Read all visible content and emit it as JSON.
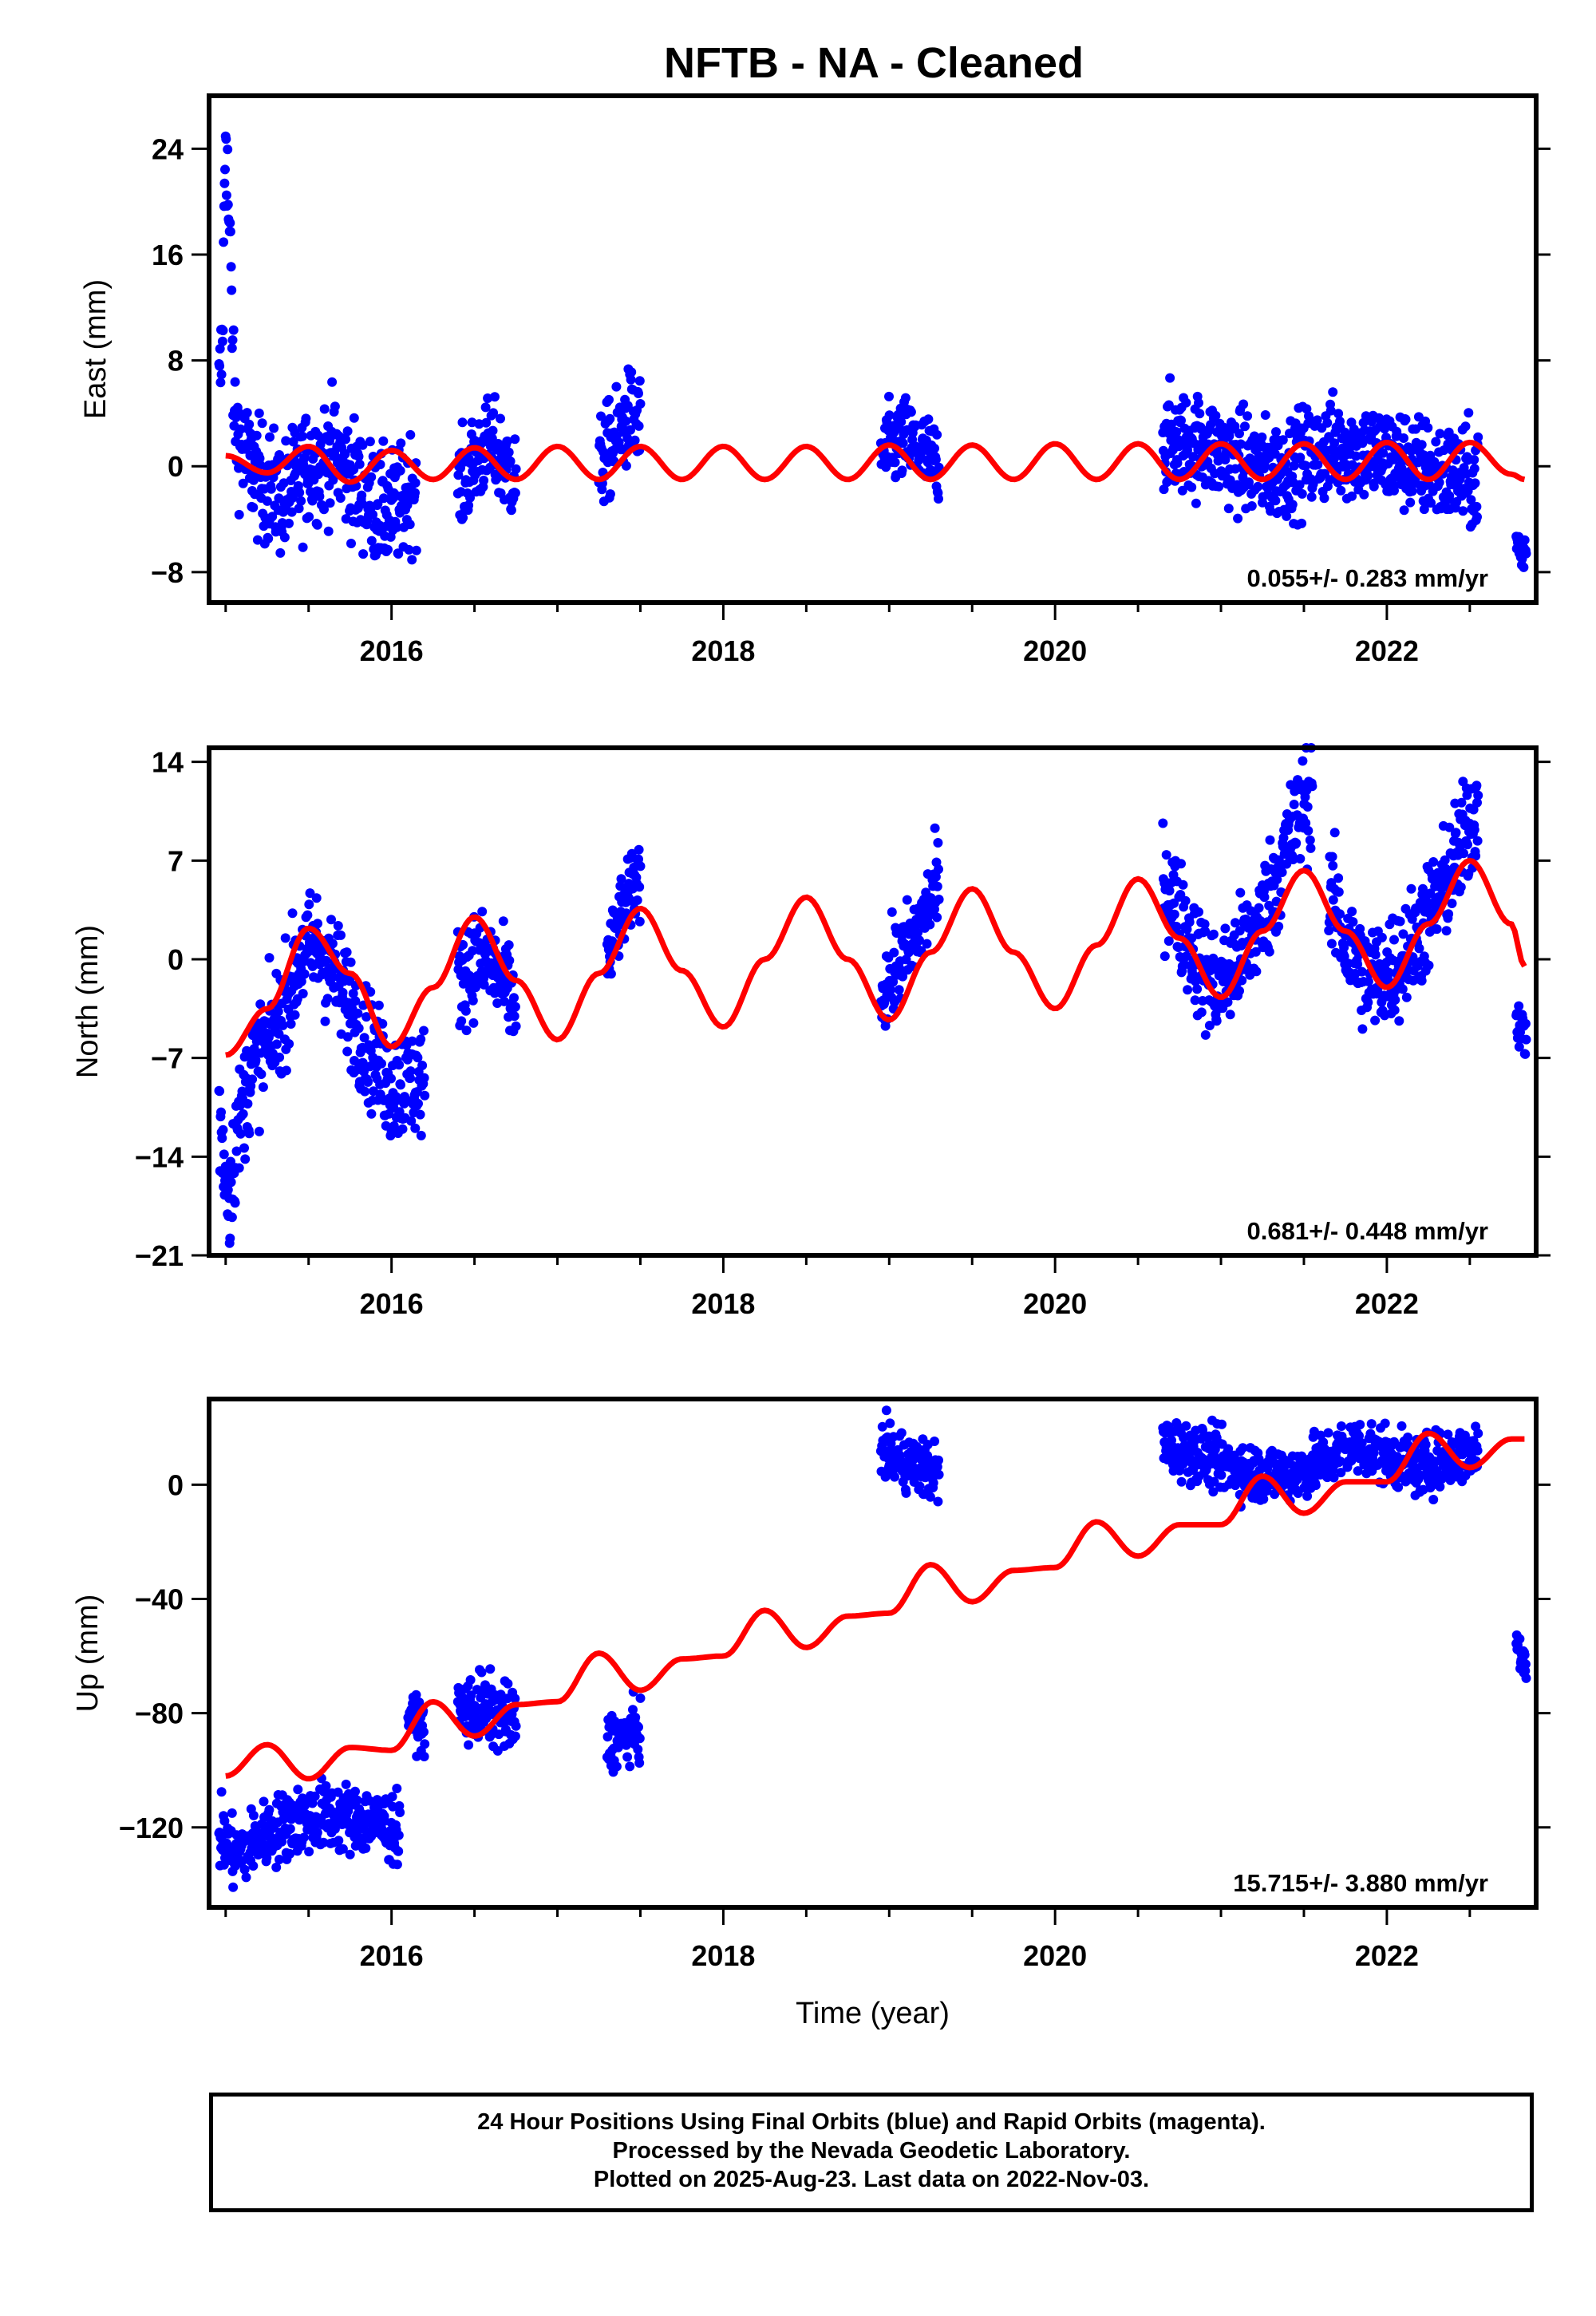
{
  "title": "NFTB  - NA - Cleaned",
  "footer": {
    "line1": "24 Hour Positions Using Final Orbits (blue) and Rapid Orbits (magenta).",
    "line2": "Processed by the Nevada Geodetic Laboratory.",
    "line3": "Plotted on 2025-Aug-23. Last data on 2022-Nov-03."
  },
  "colors": {
    "data": "#0000ff",
    "model": "#ff0000",
    "frame": "#000000"
  },
  "chart_data": [
    {
      "type": "scatter",
      "name": "east",
      "ylabel": "East (mm)",
      "xlabel": "",
      "xlim": [
        2014.9,
        2022.9
      ],
      "ylim": [
        -10.3,
        28
      ],
      "xticks": [
        2016,
        2018,
        2020,
        2022
      ],
      "yticks": [
        24,
        16,
        8,
        0,
        -8
      ],
      "ytick_labels": [
        "24",
        "16",
        "8",
        "0",
        "−8"
      ],
      "rate_label": "0.055+/- 0.283 mm/yr",
      "data_segments": [
        {
          "start": 2014.96,
          "end": 2016.15,
          "pts": [
            [
              2014.96,
              5.5
            ],
            [
              2014.98,
              9.0
            ],
            [
              2015.0,
              26.5
            ],
            [
              2015.01,
              22.0
            ],
            [
              2015.02,
              18.0
            ],
            [
              2015.03,
              15.5
            ],
            [
              2015.05,
              4.0
            ],
            [
              2015.1,
              1.0
            ],
            [
              2015.2,
              -1.0
            ],
            [
              2015.35,
              -2.5
            ],
            [
              2015.5,
              0.0
            ],
            [
              2015.65,
              1.0
            ],
            [
              2015.8,
              -1.5
            ],
            [
              2015.95,
              -3.5
            ],
            [
              2016.05,
              -3.0
            ],
            [
              2016.15,
              -1.0
            ]
          ],
          "spread": 2.2
        },
        {
          "start": 2016.4,
          "end": 2016.75,
          "pts": [
            [
              2016.4,
              -2.0
            ],
            [
              2016.5,
              0.5
            ],
            [
              2016.6,
              1.5
            ],
            [
              2016.75,
              -1.0
            ]
          ],
          "spread": 1.8
        },
        {
          "start": 2017.25,
          "end": 2017.5,
          "pts": [
            [
              2017.25,
              0.0
            ],
            [
              2017.35,
              2.0
            ],
            [
              2017.45,
              4.0
            ],
            [
              2017.5,
              3.0
            ]
          ],
          "spread": 1.8
        },
        {
          "start": 2018.95,
          "end": 2019.3,
          "pts": [
            [
              2018.95,
              1.0
            ],
            [
              2019.1,
              2.0
            ],
            [
              2019.2,
              1.0
            ],
            [
              2019.3,
              0.0
            ]
          ],
          "spread": 1.6
        },
        {
          "start": 2020.65,
          "end": 2022.55,
          "pts": [
            [
              2020.65,
              2.0
            ],
            [
              2020.9,
              1.5
            ],
            [
              2021.1,
              0.5
            ],
            [
              2021.3,
              -0.5
            ],
            [
              2021.5,
              0.5
            ],
            [
              2021.7,
              1.5
            ],
            [
              2021.9,
              1.0
            ],
            [
              2022.1,
              0.5
            ],
            [
              2022.3,
              -0.5
            ],
            [
              2022.55,
              -1.0
            ]
          ],
          "spread": 1.9
        },
        {
          "start": 2022.78,
          "end": 2022.84,
          "pts": [
            [
              2022.78,
              -5.5
            ],
            [
              2022.81,
              -7.0
            ],
            [
              2022.84,
              -6.0
            ]
          ],
          "spread": 1.0
        }
      ],
      "model": {
        "points": [
          [
            2015.0,
            0.8
          ],
          [
            2015.25,
            -0.5
          ],
          [
            2015.5,
            1.5
          ],
          [
            2015.75,
            -1.2
          ],
          [
            2016.0,
            1.2
          ],
          [
            2016.25,
            -1.0
          ],
          [
            2016.5,
            1.4
          ],
          [
            2016.75,
            -1.0
          ],
          [
            2017.0,
            1.5
          ],
          [
            2017.25,
            -1.0
          ],
          [
            2017.5,
            1.5
          ],
          [
            2017.75,
            -1.0
          ],
          [
            2018.0,
            1.5
          ],
          [
            2018.25,
            -1.0
          ],
          [
            2018.5,
            1.5
          ],
          [
            2018.75,
            -1.0
          ],
          [
            2019.0,
            1.6
          ],
          [
            2019.25,
            -1.0
          ],
          [
            2019.5,
            1.6
          ],
          [
            2019.75,
            -1.0
          ],
          [
            2020.0,
            1.7
          ],
          [
            2020.25,
            -1.0
          ],
          [
            2020.5,
            1.7
          ],
          [
            2020.75,
            -1.0
          ],
          [
            2021.0,
            1.7
          ],
          [
            2021.25,
            -1.0
          ],
          [
            2021.5,
            1.7
          ],
          [
            2021.75,
            -1.0
          ],
          [
            2022.0,
            1.8
          ],
          [
            2022.25,
            -1.0
          ],
          [
            2022.5,
            1.8
          ],
          [
            2022.75,
            -0.6
          ],
          [
            2022.83,
            -1.0
          ]
        ]
      }
    },
    {
      "type": "scatter",
      "name": "north",
      "ylabel": "North (mm)",
      "xlabel": "",
      "xlim": [
        2014.9,
        2022.9
      ],
      "ylim": [
        -21,
        15
      ],
      "xticks": [
        2016,
        2018,
        2020,
        2022
      ],
      "yticks": [
        14,
        7,
        0,
        -7,
        -14,
        -21
      ],
      "ytick_labels": [
        "14",
        "7",
        "0",
        "−7",
        "−14",
        "−21"
      ],
      "rate_label": "0.681+/- 0.448 mm/yr",
      "data_segments": [
        {
          "start": 2014.96,
          "end": 2016.2,
          "pts": [
            [
              2014.96,
              -11.0
            ],
            [
              2015.02,
              -17.0
            ],
            [
              2015.06,
              -13.0
            ],
            [
              2015.15,
              -8.0
            ],
            [
              2015.3,
              -5.0
            ],
            [
              2015.45,
              0.0
            ],
            [
              2015.55,
              1.0
            ],
            [
              2015.7,
              -2.0
            ],
            [
              2015.85,
              -6.0
            ],
            [
              2016.0,
              -9.0
            ],
            [
              2016.2,
              -8.5
            ]
          ],
          "spread": 2.0
        },
        {
          "start": 2016.4,
          "end": 2016.75,
          "pts": [
            [
              2016.4,
              -1.5
            ],
            [
              2016.5,
              0.0
            ],
            [
              2016.6,
              -0.5
            ],
            [
              2016.75,
              -3.0
            ]
          ],
          "spread": 1.8
        },
        {
          "start": 2017.3,
          "end": 2017.5,
          "pts": [
            [
              2017.3,
              -0.5
            ],
            [
              2017.38,
              3.0
            ],
            [
              2017.45,
              5.0
            ],
            [
              2017.5,
              6.0
            ]
          ],
          "spread": 1.3
        },
        {
          "start": 2018.95,
          "end": 2019.3,
          "pts": [
            [
              2018.95,
              -2.5
            ],
            [
              2019.05,
              -0.5
            ],
            [
              2019.15,
              1.5
            ],
            [
              2019.25,
              4.0
            ],
            [
              2019.3,
              5.5
            ]
          ],
          "spread": 1.6
        },
        {
          "start": 2020.65,
          "end": 2021.55,
          "pts": [
            [
              2020.65,
              6.0
            ],
            [
              2020.75,
              3.0
            ],
            [
              2020.9,
              -1.0
            ],
            [
              2021.0,
              -2.0
            ],
            [
              2021.1,
              0.0
            ],
            [
              2021.25,
              3.0
            ],
            [
              2021.4,
              8.0
            ],
            [
              2021.5,
              11.0
            ],
            [
              2021.55,
              12.0
            ]
          ],
          "spread": 2.0
        },
        {
          "start": 2021.65,
          "end": 2022.55,
          "pts": [
            [
              2021.65,
              5.0
            ],
            [
              2021.75,
              1.0
            ],
            [
              2021.9,
              -1.5
            ],
            [
              2022.0,
              -1.0
            ],
            [
              2022.15,
              1.0
            ],
            [
              2022.3,
              4.0
            ],
            [
              2022.45,
              8.0
            ],
            [
              2022.55,
              11.0
            ]
          ],
          "spread": 2.0
        },
        {
          "start": 2022.78,
          "end": 2022.84,
          "pts": [
            [
              2022.78,
              -3.5
            ],
            [
              2022.81,
              -5.0
            ],
            [
              2022.84,
              -5.5
            ]
          ],
          "spread": 1.0
        }
      ],
      "model": {
        "points": [
          [
            2015.0,
            -6.8
          ],
          [
            2015.25,
            -3.5
          ],
          [
            2015.5,
            2.2
          ],
          [
            2015.75,
            -1.0
          ],
          [
            2016.0,
            -6.2
          ],
          [
            2016.25,
            -2.0
          ],
          [
            2016.5,
            3.0
          ],
          [
            2016.75,
            -1.5
          ],
          [
            2017.0,
            -5.7
          ],
          [
            2017.25,
            -1.0
          ],
          [
            2017.5,
            3.6
          ],
          [
            2017.75,
            -0.8
          ],
          [
            2018.0,
            -4.8
          ],
          [
            2018.25,
            0.0
          ],
          [
            2018.5,
            4.4
          ],
          [
            2018.75,
            0.0
          ],
          [
            2019.0,
            -4.3
          ],
          [
            2019.25,
            0.5
          ],
          [
            2019.5,
            5.0
          ],
          [
            2019.75,
            0.5
          ],
          [
            2020.0,
            -3.5
          ],
          [
            2020.25,
            1.0
          ],
          [
            2020.5,
            5.7
          ],
          [
            2020.75,
            1.5
          ],
          [
            2021.0,
            -2.7
          ],
          [
            2021.25,
            2.0
          ],
          [
            2021.5,
            6.3
          ],
          [
            2021.75,
            2.0
          ],
          [
            2022.0,
            -2.0
          ],
          [
            2022.25,
            2.5
          ],
          [
            2022.5,
            7.0
          ],
          [
            2022.75,
            2.5
          ],
          [
            2022.83,
            -0.5
          ]
        ]
      }
    },
    {
      "type": "scatter",
      "name": "up",
      "ylabel": "Up (mm)",
      "xlabel": "Time (year)",
      "xlim": [
        2014.9,
        2022.9
      ],
      "ylim": [
        -148,
        30
      ],
      "xticks": [
        2016,
        2018,
        2020,
        2022
      ],
      "yticks": [
        0,
        -40,
        -80,
        -120
      ],
      "ytick_labels": [
        "0",
        "−40",
        "−80",
        "−120"
      ],
      "rate_label": "15.715+/- 3.880 mm/yr",
      "data_segments": [
        {
          "start": 2014.96,
          "end": 2016.05,
          "pts": [
            [
              2014.96,
              -122
            ],
            [
              2015.05,
              -130
            ],
            [
              2015.2,
              -124
            ],
            [
              2015.4,
              -118
            ],
            [
              2015.6,
              -116
            ],
            [
              2015.8,
              -117
            ],
            [
              2016.0,
              -120
            ],
            [
              2016.05,
              -122
            ]
          ],
          "spread": 6.0
        },
        {
          "start": 2016.1,
          "end": 2016.2,
          "pts": [
            [
              2016.1,
              -80
            ],
            [
              2016.2,
              -86
            ]
          ],
          "spread": 4.0
        },
        {
          "start": 2016.4,
          "end": 2016.75,
          "pts": [
            [
              2016.4,
              -80
            ],
            [
              2016.55,
              -78
            ],
            [
              2016.75,
              -84
            ]
          ],
          "spread": 6.0
        },
        {
          "start": 2017.3,
          "end": 2017.5,
          "pts": [
            [
              2017.3,
              -90
            ],
            [
              2017.5,
              -86
            ]
          ],
          "spread": 5.0
        },
        {
          "start": 2018.95,
          "end": 2019.3,
          "pts": [
            [
              2018.95,
              12
            ],
            [
              2019.1,
              8
            ],
            [
              2019.3,
              4
            ]
          ],
          "spread": 5.0
        },
        {
          "start": 2020.65,
          "end": 2022.55,
          "pts": [
            [
              2020.65,
              14
            ],
            [
              2020.9,
              10
            ],
            [
              2021.2,
              4
            ],
            [
              2021.45,
              4
            ],
            [
              2021.6,
              8
            ],
            [
              2021.8,
              14
            ],
            [
              2022.0,
              10
            ],
            [
              2022.2,
              6
            ],
            [
              2022.4,
              10
            ],
            [
              2022.55,
              12
            ]
          ],
          "spread": 5.0
        },
        {
          "start": 2022.78,
          "end": 2022.84,
          "pts": [
            [
              2022.78,
              -54
            ],
            [
              2022.81,
              -58
            ],
            [
              2022.84,
              -62
            ]
          ],
          "spread": 4.0
        }
      ],
      "model": {
        "points": [
          [
            2015.0,
            -102
          ],
          [
            2015.25,
            -91
          ],
          [
            2015.5,
            -103
          ],
          [
            2015.75,
            -92
          ],
          [
            2016.0,
            -93
          ],
          [
            2016.25,
            -76
          ],
          [
            2016.5,
            -88
          ],
          [
            2016.75,
            -77
          ],
          [
            2017.0,
            -76
          ],
          [
            2017.25,
            -59
          ],
          [
            2017.5,
            -72
          ],
          [
            2017.75,
            -61
          ],
          [
            2018.0,
            -60
          ],
          [
            2018.25,
            -44
          ],
          [
            2018.5,
            -57
          ],
          [
            2018.75,
            -46
          ],
          [
            2019.0,
            -45
          ],
          [
            2019.25,
            -28
          ],
          [
            2019.5,
            -41
          ],
          [
            2019.75,
            -30
          ],
          [
            2020.0,
            -29
          ],
          [
            2020.25,
            -13
          ],
          [
            2020.5,
            -25
          ],
          [
            2020.75,
            -14
          ],
          [
            2021.0,
            -14
          ],
          [
            2021.25,
            3
          ],
          [
            2021.5,
            -10
          ],
          [
            2021.75,
            1
          ],
          [
            2022.0,
            1
          ],
          [
            2022.25,
            18
          ],
          [
            2022.5,
            6
          ],
          [
            2022.75,
            16
          ],
          [
            2022.83,
            16
          ]
        ]
      }
    }
  ]
}
